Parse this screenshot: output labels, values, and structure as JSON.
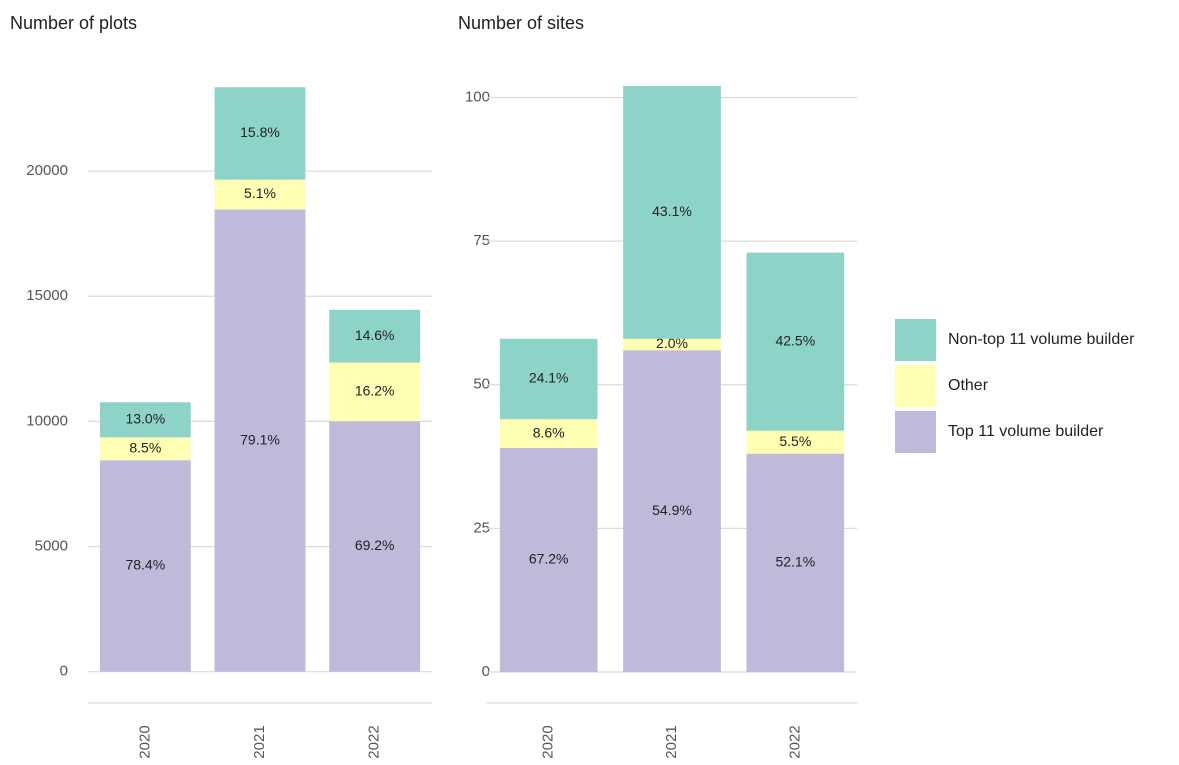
{
  "chart_data": [
    {
      "type": "stacked_bar",
      "title": "Number of plots",
      "categories": [
        "2020",
        "2021",
        "2022"
      ],
      "series": [
        {
          "name": "Top 11 volume builder",
          "color": "#bebada",
          "values": [
            8450,
            18470,
            10010
          ],
          "labels": [
            "78.4%",
            "79.1%",
            "69.2%"
          ]
        },
        {
          "name": "Other",
          "color": "#ffffb3",
          "values": [
            915,
            1190,
            2340
          ],
          "labels": [
            "8.5%",
            "5.1%",
            "16.2%"
          ]
        },
        {
          "name": "Non-top 11 volume builder",
          "color": "#8dd3c7",
          "values": [
            1400,
            3690,
            2110
          ],
          "labels": [
            "13.0%",
            "15.8%",
            "14.6%"
          ]
        }
      ],
      "ylim": [
        -1250,
        23400
      ],
      "yticks": [
        0,
        5000,
        10000,
        15000,
        20000
      ],
      "grid": true
    },
    {
      "type": "stacked_bar",
      "title": "Number of sites",
      "categories": [
        "2020",
        "2021",
        "2022"
      ],
      "series": [
        {
          "name": "Top 11 volume builder",
          "color": "#bebada",
          "values": [
            39,
            56,
            38
          ],
          "labels": [
            "67.2%",
            "54.9%",
            "52.1%"
          ]
        },
        {
          "name": "Other",
          "color": "#ffffb3",
          "values": [
            5,
            2,
            4
          ],
          "labels": [
            "8.6%",
            "2.0%",
            "5.5%"
          ]
        },
        {
          "name": "Non-top 11 volume builder",
          "color": "#8dd3c7",
          "values": [
            14,
            44,
            31
          ],
          "labels": [
            "24.1%",
            "43.1%",
            "42.5%"
          ]
        }
      ],
      "ylim": [
        -5.4,
        102
      ],
      "yticks": [
        0,
        25,
        50,
        75,
        100
      ],
      "grid": true
    }
  ]
}
